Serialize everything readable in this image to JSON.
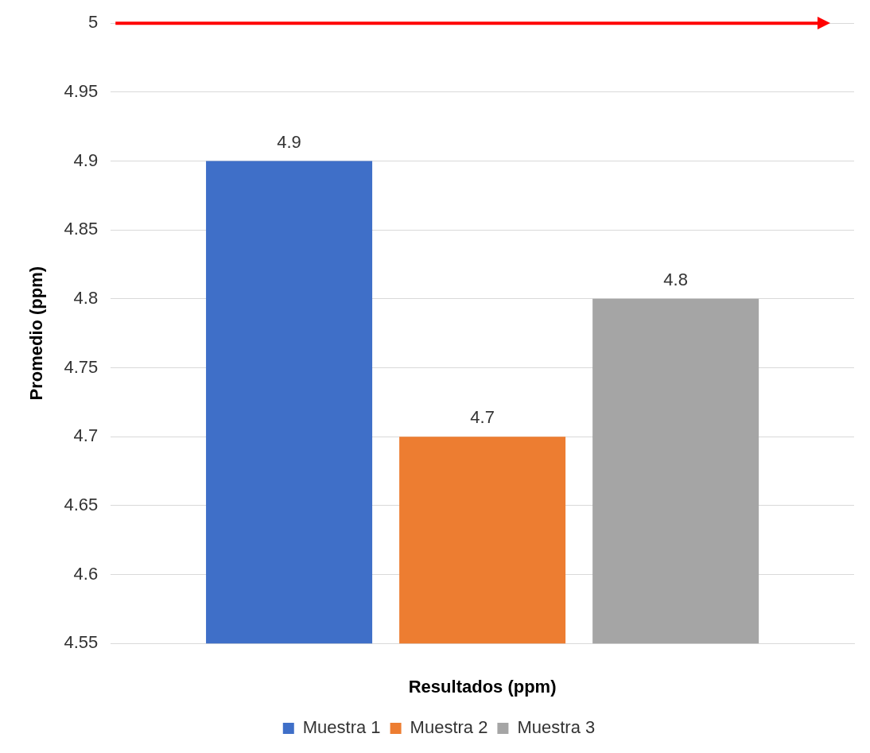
{
  "chart_data": {
    "type": "bar",
    "xlabel": "Resultados (ppm)",
    "ylabel": "Promedio (ppm)",
    "categories": [
      null
    ],
    "series": [
      {
        "name": "Muestra 1",
        "color": "#3f6fc8",
        "values": [
          4.9
        ]
      },
      {
        "name": "Muestra 2",
        "color": "#ed7d31",
        "values": [
          4.7
        ]
      },
      {
        "name": "Muestra 3",
        "color": "#a5a5a5",
        "values": [
          4.8
        ]
      }
    ],
    "ylim": [
      4.55,
      5
    ],
    "yticks": [
      4.55,
      4.6,
      4.65,
      4.7,
      4.75,
      4.8,
      4.85,
      4.9,
      4.95,
      5
    ],
    "grid": "y",
    "legend": "bottom",
    "data_labels": true,
    "ref_lines": [
      {
        "axis": "y",
        "value": 5,
        "color": "#ff0000"
      }
    ]
  }
}
